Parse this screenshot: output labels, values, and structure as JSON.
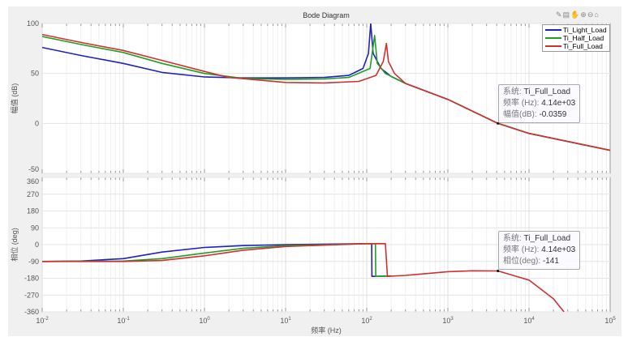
{
  "chart_data": [
    {
      "type": "line",
      "title": "Bode Diagram",
      "ylabel": "幅值 (dB)",
      "xscale": "log",
      "xlim": [
        0.01,
        100000
      ],
      "ylim": [
        -50,
        100
      ],
      "yticks": [
        "100",
        "50",
        "0",
        "-50"
      ],
      "grid": true,
      "legend_position": "top-right",
      "series": [
        {
          "name": "Ti_Light_Load",
          "color": "#2020c0",
          "x": [
            0.01,
            0.03,
            0.1,
            0.3,
            1,
            3,
            10,
            30,
            60,
            90,
            105,
            112,
            120,
            150,
            200,
            300,
            1000,
            4140,
            10000,
            100000
          ],
          "y": [
            76,
            68,
            60,
            51,
            46.5,
            45.5,
            45.5,
            46,
            48,
            55,
            70,
            100,
            70,
            55,
            47,
            40,
            24,
            0,
            -10,
            -27
          ]
        },
        {
          "name": "Ti_Half_Load",
          "color": "#20a020",
          "x": [
            0.01,
            0.03,
            0.1,
            0.3,
            1,
            3,
            10,
            30,
            60,
            110,
            125,
            135,
            170,
            300,
            1000,
            4140,
            10000,
            100000
          ],
          "y": [
            87,
            79,
            71,
            60,
            50,
            45,
            44,
            44.5,
            46,
            55,
            88,
            60,
            50,
            40,
            24,
            0,
            -10,
            -27
          ]
        },
        {
          "name": "Ti_Full_Load",
          "color": "#d03030",
          "x": [
            0.01,
            0.03,
            0.1,
            0.3,
            1,
            2,
            10,
            30,
            80,
            130,
            160,
            175,
            185,
            220,
            300,
            1000,
            4140,
            10000,
            100000
          ],
          "y": [
            89,
            81,
            73,
            63,
            52,
            46,
            41,
            40.5,
            42,
            48,
            62,
            80,
            62,
            50,
            40,
            24,
            -0.0359,
            -10,
            -27
          ]
        }
      ],
      "datatip": {
        "system_label": "系统:",
        "system": "Ti_Full_Load",
        "freq_label": "频率 (Hz):",
        "freq": "4.14e+03",
        "value_label": "幅值(dB):",
        "value": "-0.0359",
        "x": 4140,
        "y": -0.0359
      }
    },
    {
      "type": "line",
      "xlabel": "频率 (Hz)",
      "ylabel": "相位 (deg)",
      "xscale": "log",
      "xlim": [
        0.01,
        100000
      ],
      "ylim": [
        -360,
        360
      ],
      "yticks": [
        "360",
        "270",
        "180",
        "90",
        "0",
        "-90",
        "-180",
        "-270",
        "-360"
      ],
      "xticks": [
        "10^-2",
        "10^-1",
        "10^0",
        "10^1",
        "10^2",
        "10^3",
        "10^4",
        "10^5"
      ],
      "grid": true,
      "series": [
        {
          "name": "Ti_Light_Load",
          "color": "#2020c0",
          "x": [
            0.01,
            0.03,
            0.1,
            0.3,
            1,
            3,
            10,
            100,
            115,
            116,
            130,
            200
          ],
          "y": [
            -90,
            -88,
            -75,
            -40,
            -15,
            -5,
            0,
            5,
            5,
            -170,
            -170,
            -168
          ]
        },
        {
          "name": "Ti_Half_Load",
          "color": "#20a020",
          "x": [
            0.01,
            0.1,
            0.3,
            1,
            3,
            10,
            100,
            128,
            129,
            150,
            200
          ],
          "y": [
            -90,
            -88,
            -75,
            -45,
            -20,
            -5,
            5,
            5,
            -170,
            -170,
            -168
          ]
        },
        {
          "name": "Ti_Full_Load",
          "color": "#d03030",
          "x": [
            0.01,
            0.1,
            0.3,
            1,
            3,
            10,
            100,
            170,
            180,
            300,
            1000,
            2000,
            4140,
            10000,
            20000,
            27000
          ],
          "y": [
            -90,
            -90,
            -85,
            -60,
            -30,
            -10,
            5,
            5,
            -170,
            -165,
            -145,
            -140,
            -141,
            -190,
            -290,
            -360
          ]
        }
      ],
      "datatip": {
        "system_label": "系统:",
        "system": "Ti_Full_Load",
        "freq_label": "频率 (Hz):",
        "freq": "4.14e+03",
        "value_label": "相位(deg):",
        "value": "-141",
        "x": 4140,
        "y": -141
      }
    }
  ],
  "toolbar_icons": [
    "brush-icon",
    "datatip-icon",
    "pan-icon",
    "zoom-in-icon",
    "zoom-out-icon",
    "home-icon"
  ]
}
